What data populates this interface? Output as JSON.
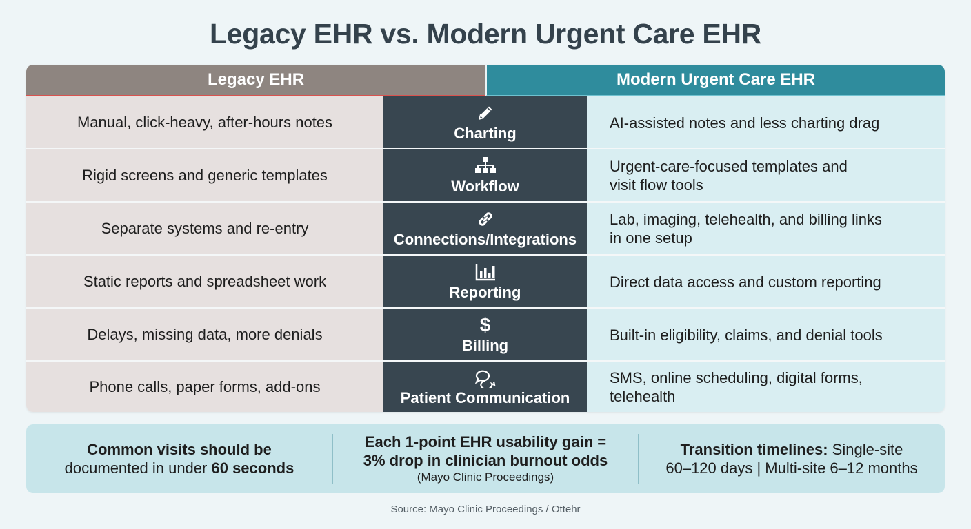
{
  "title": "Legacy EHR vs. Modern Urgent Care EHR",
  "columns": {
    "left": "Legacy EHR",
    "right": "Modern Urgent Care EHR"
  },
  "rows": [
    {
      "legacy": "Manual, click-heavy, after-hours notes",
      "category": "Charting",
      "icon": "pencil-icon",
      "modern": "AI-assisted notes and less charting drag"
    },
    {
      "legacy": "Rigid screens and generic templates",
      "category": "Workflow",
      "icon": "workflow-icon",
      "modern": "Urgent-care-focused templates and\nvisit flow tools"
    },
    {
      "legacy": "Separate systems and re-entry",
      "category": "Connections/Integrations",
      "icon": "link-icon",
      "modern": "Lab, imaging, telehealth, and billing links\nin one setup"
    },
    {
      "legacy": "Static reports and spreadsheet work",
      "category": "Reporting",
      "icon": "bar-chart-icon",
      "modern": "Direct data access and custom reporting"
    },
    {
      "legacy": "Delays, missing data, more denials",
      "category": "Billing",
      "icon": "dollar-icon",
      "modern": "Built-in eligibility, claims, and denial tools"
    },
    {
      "legacy": "Phone calls, paper forms, add-ons",
      "category": "Patient Communication",
      "icon": "chat-bubbles-icon",
      "modern": "SMS, online scheduling, digital forms,\ntelehealth"
    }
  ],
  "stats": {
    "s1": {
      "bold1": "Common visits should be",
      "normal": "documented in under ",
      "bold2": "60 seconds"
    },
    "s2": {
      "bold1": "Each 1-point EHR usability gain =",
      "bold2": "3% drop in clinician burnout odds",
      "note": "(Mayo Clinic Proceedings)"
    },
    "s3": {
      "bold": "Transition timelines:",
      "normal1": " Single-site",
      "normal2": "60–120 days | Multi-site 6–12 months"
    }
  },
  "source": "Source: Mayo Clinic Proceedings / Ottehr",
  "colors": {
    "legacy_header": "#8e8580",
    "modern_header": "#2f8c9d",
    "category": "#384650",
    "legacy_cell": "#e6e0df",
    "modern_cell": "#d9eef2"
  }
}
